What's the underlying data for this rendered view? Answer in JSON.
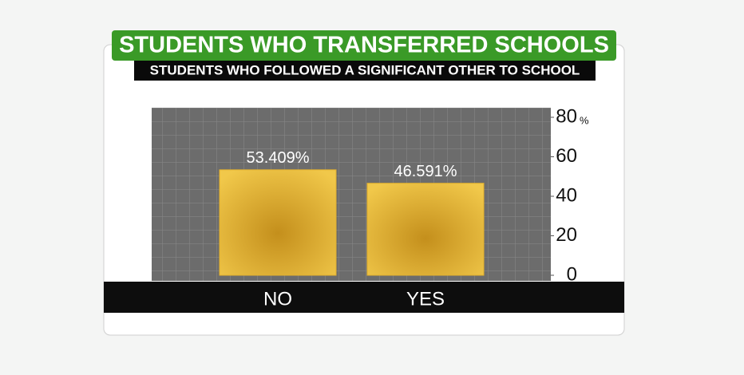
{
  "chart_data": {
    "type": "bar",
    "title": "STUDENTS WHO TRANSFERRED SCHOOLS",
    "subtitle": "STUDENTS WHO FOLLOWED A SIGNIFICANT OTHER TO SCHOOL",
    "categories": [
      "NO",
      "YES"
    ],
    "values": [
      53.409,
      46.591
    ],
    "value_labels": [
      "53.409%",
      "46.591%"
    ],
    "color": "#e2b02c",
    "ylim": [
      0,
      80
    ],
    "yticks": [
      0,
      20,
      40,
      60,
      80
    ],
    "y_unit": "%"
  }
}
